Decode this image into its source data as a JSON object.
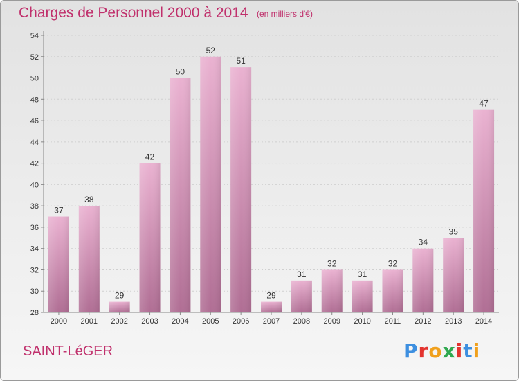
{
  "title": "Charges de Personnel 2000 à 2014",
  "subtitle": "(en milliers d'€)",
  "commune": "SAINT-LéGER",
  "brand": {
    "text": "Proxiti",
    "letter_colors": [
      "#3d8fe0",
      "#e3342f",
      "#f0a01c",
      "#2fa84f",
      "#e3342f",
      "#3d8fe0",
      "#f0a01c"
    ]
  },
  "colors": {
    "title": "#c0306c",
    "bar_light": "#eab2d1",
    "bar_dark": "#b06e94",
    "grid": "#d0d0d0",
    "axis": "#888888"
  },
  "chart_data": {
    "type": "bar",
    "title": "Charges de Personnel 2000 à 2014",
    "subtitle": "(en milliers d'€)",
    "categories": [
      "2000",
      "2001",
      "2002",
      "2003",
      "2004",
      "2005",
      "2006",
      "2007",
      "2008",
      "2009",
      "2010",
      "2011",
      "2012",
      "2013",
      "2014"
    ],
    "values": [
      37,
      38,
      29,
      42,
      50,
      52,
      51,
      29,
      31,
      32,
      31,
      32,
      34,
      35,
      47
    ],
    "ylim": [
      28,
      54
    ],
    "yticks": [
      28,
      30,
      32,
      34,
      36,
      38,
      40,
      42,
      44,
      46,
      48,
      50,
      52,
      54
    ],
    "grid": true
  }
}
